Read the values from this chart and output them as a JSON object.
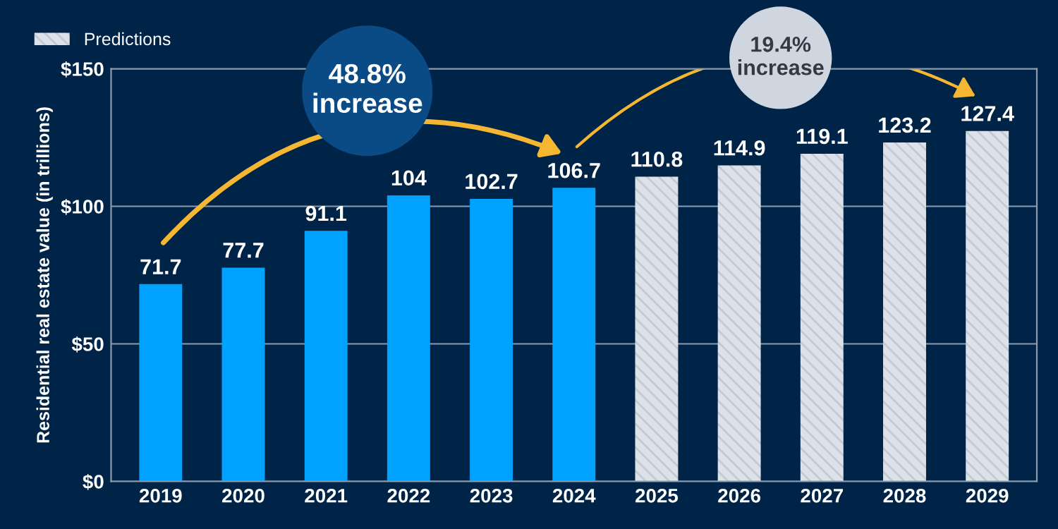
{
  "chart_data": {
    "type": "bar",
    "ylabel": "Residential real estate value (in trillions)",
    "categories": [
      "2019",
      "2020",
      "2021",
      "2022",
      "2023",
      "2024",
      "2025",
      "2026",
      "2027",
      "2028",
      "2029"
    ],
    "series": [
      {
        "color": "#00a2ff",
        "values": [
          71.7,
          77.7,
          91.1,
          104,
          102.7,
          106.7,
          null,
          null,
          null,
          null,
          null
        ]
      },
      {
        "name": "Predictions",
        "color": "#dde2ea",
        "values": [
          null,
          null,
          null,
          null,
          null,
          null,
          110.8,
          114.9,
          119.1,
          123.2,
          127.4
        ]
      }
    ],
    "ylim": [
      0,
      150
    ],
    "yticks": [
      {
        "value": 0,
        "label": "$0"
      },
      {
        "value": 50,
        "label": "$50"
      },
      {
        "value": 100,
        "label": "$100"
      },
      {
        "value": 150,
        "label": "$150"
      }
    ],
    "grid": "y",
    "legend": "top left",
    "data_labels": true,
    "annotations": [
      "48.8%\nincrease",
      "19.4%\nincrease"
    ]
  }
}
